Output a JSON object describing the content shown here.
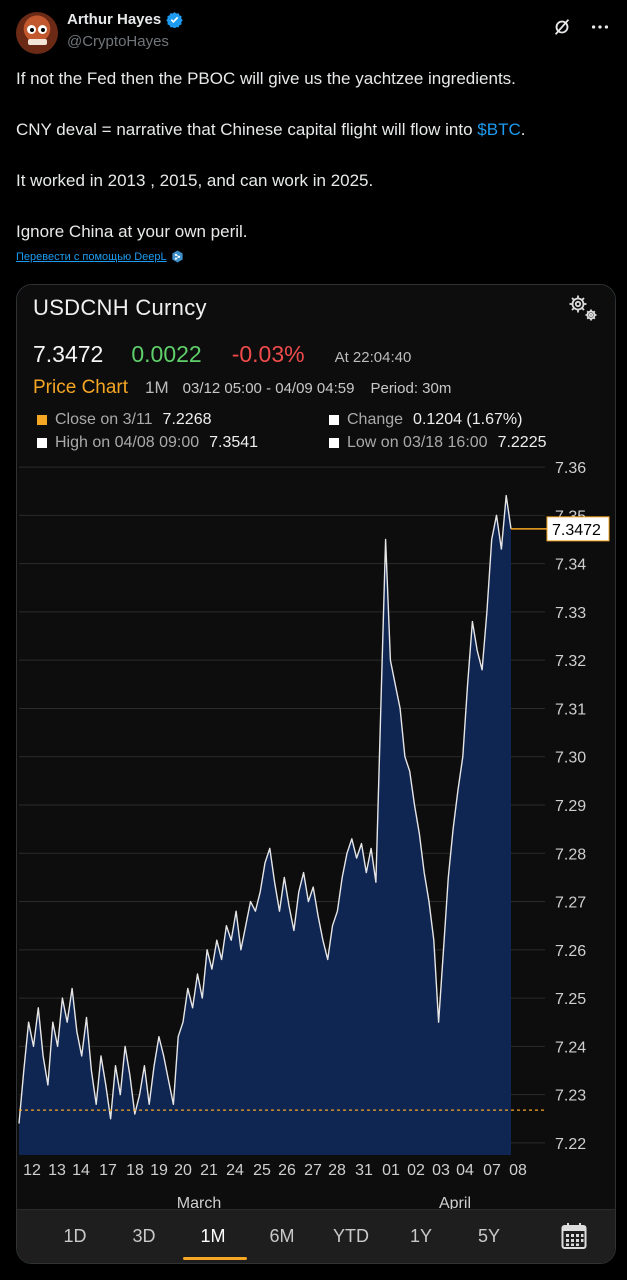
{
  "tweet": {
    "author": {
      "name": "Arthur Hayes",
      "handle": "@CryptoHayes"
    },
    "paragraphs": [
      "If not the Fed then the PBOC will give us the yachtzee ingredients.",
      "CNY deval = narrative that Chinese capital flight will flow into",
      "It worked in 2013 , 2015, and can work in 2025.",
      "Ignore China at your own peril."
    ],
    "cashtag": "$BTC",
    "cashtag_suffix": ".",
    "translate_link": "Перевести с помощью DeepL",
    "icons": {
      "verified": "verified-badge-icon",
      "grok": "grok-icon",
      "more": "more-icon",
      "deepl": "deepl-icon"
    }
  },
  "terminal": {
    "instrument": "USDCNH Curncy",
    "last_price": "7.3472",
    "change": "0.0022",
    "change_pct": "-0.03%",
    "timestamp": "At 22:04:40",
    "price_chart_label": "Price Chart",
    "period_label": "1M",
    "range": "03/12 05:00 - 04/09 04:59",
    "interval": "Period: 30m",
    "stats": {
      "close": {
        "label": "Close on 3/11",
        "value": "7.2268"
      },
      "change": {
        "label": "Change",
        "value": "0.1204 (1.67%)"
      },
      "high": {
        "label": "High on 04/08 09:00",
        "value": "7.3541"
      },
      "low": {
        "label": "Low on 03/18 16:00",
        "value": "7.2225"
      }
    },
    "timeframes": [
      "1D",
      "3D",
      "1M",
      "6M",
      "YTD",
      "1Y",
      "5Y"
    ],
    "active_timeframe": "1M",
    "colors": {
      "accent": "#f5a623",
      "up": "#5fcf6b",
      "down": "#f04b4b",
      "area": "#0f2552",
      "line": "#e6e6e6"
    }
  },
  "chart_data": {
    "type": "area",
    "y_ticks": [
      "7.36",
      "7.35",
      "7.34",
      "7.33",
      "7.32",
      "7.31",
      "7.30",
      "7.29",
      "7.28",
      "7.27",
      "7.26",
      "7.25",
      "7.24",
      "7.23",
      "7.22"
    ],
    "ylim": [
      7.2175,
      7.3625
    ],
    "x_ticks": [
      "12",
      "13",
      "14",
      "17",
      "18",
      "19",
      "20",
      "21",
      "24",
      "25",
      "26",
      "27",
      "28",
      "31",
      "01",
      "02",
      "03",
      "04",
      "07",
      "08"
    ],
    "month_labels": [
      "March",
      "April"
    ],
    "last_value_label": "7.3472",
    "reference_line": 7.2268,
    "grid": true,
    "series": [
      {
        "values": [
          7.224,
          7.235,
          7.245,
          7.24,
          7.248,
          7.238,
          7.232,
          7.245,
          7.24,
          7.25,
          7.245,
          7.252,
          7.243,
          7.238,
          7.246,
          7.235,
          7.228,
          7.238,
          7.232,
          7.225,
          7.236,
          7.23,
          7.24,
          7.234,
          7.226,
          7.23,
          7.236,
          7.228,
          7.236,
          7.242,
          7.238,
          7.233,
          7.228,
          7.242,
          7.245,
          7.252,
          7.248,
          7.255,
          7.25,
          7.26,
          7.256,
          7.262,
          7.258,
          7.265,
          7.262,
          7.268,
          7.26,
          7.265,
          7.27,
          7.268,
          7.272,
          7.278,
          7.281,
          7.274,
          7.268,
          7.275,
          7.269,
          7.264,
          7.272,
          7.276,
          7.27,
          7.273,
          7.267,
          7.262,
          7.258,
          7.265,
          7.268,
          7.275,
          7.28,
          7.283,
          7.279,
          7.282,
          7.276,
          7.281,
          7.274,
          7.31,
          7.345,
          7.32,
          7.315,
          7.31,
          7.3,
          7.297,
          7.29,
          7.284,
          7.276,
          7.27,
          7.262,
          7.245,
          7.26,
          7.275,
          7.285,
          7.293,
          7.3,
          7.315,
          7.328,
          7.322,
          7.318,
          7.33,
          7.345,
          7.35,
          7.343,
          7.3541,
          7.3472
        ]
      }
    ]
  }
}
